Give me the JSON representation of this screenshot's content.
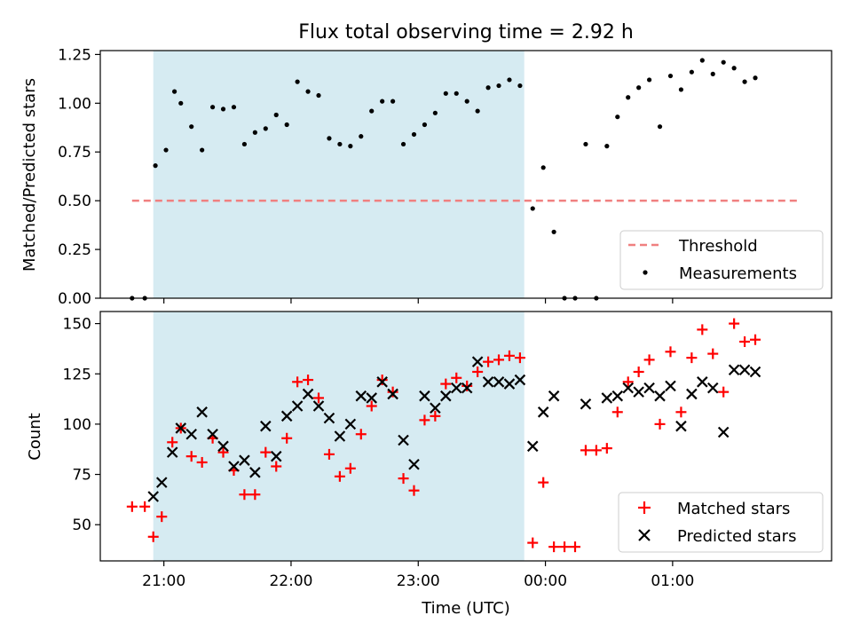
{
  "chart_data": [
    {
      "type": "scatter",
      "title": "Flux total observing time = 2.92 h",
      "xlabel": "",
      "ylabel": "Matched/Predicted stars",
      "ylim": [
        0,
        1.27
      ],
      "yticks": [
        "0.00",
        "0.25",
        "0.50",
        "0.75",
        "1.00",
        "1.25"
      ],
      "ytick_values": [
        0,
        0.25,
        0.5,
        0.75,
        1.0,
        1.25
      ],
      "xlim": [
        "20:30",
        "02:15"
      ],
      "shaded_span": [
        "20:55",
        "23:50"
      ],
      "shaded_color": "#add8e6",
      "legend_position": "lower-right",
      "threshold": {
        "name": "Threshold",
        "value": 0.5,
        "x": [
          "20:45",
          "02:00"
        ],
        "color": "#f08080"
      },
      "series": [
        {
          "name": "Measurements",
          "color": "#000000",
          "points": [
            [
              "20:45",
              0.0
            ],
            [
              "20:51",
              0.0
            ],
            [
              "20:56",
              0.68
            ],
            [
              "21:01",
              0.76
            ],
            [
              "21:05",
              1.06
            ],
            [
              "21:08",
              1.0
            ],
            [
              "21:13",
              0.88
            ],
            [
              "21:18",
              0.76
            ],
            [
              "21:23",
              0.98
            ],
            [
              "21:28",
              0.97
            ],
            [
              "21:33",
              0.98
            ],
            [
              "21:38",
              0.79
            ],
            [
              "21:43",
              0.85
            ],
            [
              "21:48",
              0.87
            ],
            [
              "21:53",
              0.94
            ],
            [
              "21:58",
              0.89
            ],
            [
              "22:03",
              1.11
            ],
            [
              "22:08",
              1.06
            ],
            [
              "22:13",
              1.04
            ],
            [
              "22:18",
              0.82
            ],
            [
              "22:23",
              0.79
            ],
            [
              "22:28",
              0.78
            ],
            [
              "22:33",
              0.83
            ],
            [
              "22:38",
              0.96
            ],
            [
              "22:43",
              1.01
            ],
            [
              "22:48",
              1.01
            ],
            [
              "22:53",
              0.79
            ],
            [
              "22:58",
              0.84
            ],
            [
              "23:03",
              0.89
            ],
            [
              "23:08",
              0.95
            ],
            [
              "23:13",
              1.05
            ],
            [
              "23:18",
              1.05
            ],
            [
              "23:23",
              1.01
            ],
            [
              "23:28",
              0.96
            ],
            [
              "23:33",
              1.08
            ],
            [
              "23:38",
              1.09
            ],
            [
              "23:43",
              1.12
            ],
            [
              "23:48",
              1.09
            ],
            [
              "23:54",
              0.46
            ],
            [
              "23:59",
              0.67
            ],
            [
              "00:04",
              0.34
            ],
            [
              "00:09",
              0.0
            ],
            [
              "00:14",
              0.0
            ],
            [
              "00:19",
              0.79
            ],
            [
              "00:24",
              0.0
            ],
            [
              "00:29",
              0.78
            ],
            [
              "00:34",
              0.93
            ],
            [
              "00:39",
              1.03
            ],
            [
              "00:44",
              1.08
            ],
            [
              "00:49",
              1.12
            ],
            [
              "00:54",
              0.88
            ],
            [
              "00:59",
              1.14
            ],
            [
              "01:04",
              1.07
            ],
            [
              "01:09",
              1.16
            ],
            [
              "01:14",
              1.22
            ],
            [
              "01:19",
              1.15
            ],
            [
              "01:24",
              1.21
            ],
            [
              "01:29",
              1.18
            ],
            [
              "01:34",
              1.11
            ],
            [
              "01:39",
              1.13
            ]
          ]
        }
      ]
    },
    {
      "type": "scatter",
      "title": "",
      "xlabel": "Time (UTC)",
      "ylabel": "Count",
      "ylim": [
        32,
        156
      ],
      "yticks": [
        "50",
        "75",
        "100",
        "125",
        "150"
      ],
      "ytick_values": [
        50,
        75,
        100,
        125,
        150
      ],
      "xlim": [
        "20:30",
        "02:15"
      ],
      "xticks": [
        "21:00",
        "22:00",
        "23:00",
        "00:00",
        "01:00"
      ],
      "xtick_hours": [
        21,
        22,
        23,
        24,
        25
      ],
      "shaded_span": [
        "20:55",
        "23:50"
      ],
      "shaded_color": "#add8e6",
      "legend_position": "lower-right",
      "series": [
        {
          "name": "Matched stars",
          "marker": "plus",
          "color": "#ff0000",
          "points": [
            [
              "20:45",
              59
            ],
            [
              "20:51",
              59
            ],
            [
              "20:55",
              44
            ],
            [
              "20:59",
              54
            ],
            [
              "21:04",
              91
            ],
            [
              "21:08",
              98
            ],
            [
              "21:13",
              84
            ],
            [
              "21:18",
              81
            ],
            [
              "21:23",
              93
            ],
            [
              "21:28",
              86
            ],
            [
              "21:33",
              77
            ],
            [
              "21:38",
              65
            ],
            [
              "21:43",
              65
            ],
            [
              "21:48",
              86
            ],
            [
              "21:53",
              79
            ],
            [
              "21:58",
              93
            ],
            [
              "22:03",
              121
            ],
            [
              "22:08",
              122
            ],
            [
              "22:13",
              113
            ],
            [
              "22:18",
              85
            ],
            [
              "22:23",
              74
            ],
            [
              "22:28",
              78
            ],
            [
              "22:33",
              95
            ],
            [
              "22:38",
              109
            ],
            [
              "22:43",
              122
            ],
            [
              "22:48",
              116
            ],
            [
              "22:53",
              73
            ],
            [
              "22:58",
              67
            ],
            [
              "23:03",
              102
            ],
            [
              "23:08",
              104
            ],
            [
              "23:13",
              120
            ],
            [
              "23:18",
              123
            ],
            [
              "23:23",
              119
            ],
            [
              "23:28",
              126
            ],
            [
              "23:33",
              131
            ],
            [
              "23:38",
              132
            ],
            [
              "23:43",
              134
            ],
            [
              "23:48",
              133
            ],
            [
              "23:54",
              41
            ],
            [
              "23:59",
              71
            ],
            [
              "00:04",
              39
            ],
            [
              "00:09",
              39
            ],
            [
              "00:14",
              39
            ],
            [
              "00:19",
              87
            ],
            [
              "00:24",
              87
            ],
            [
              "00:29",
              88
            ],
            [
              "00:34",
              106
            ],
            [
              "00:39",
              121
            ],
            [
              "00:44",
              126
            ],
            [
              "00:49",
              132
            ],
            [
              "00:54",
              100
            ],
            [
              "00:59",
              136
            ],
            [
              "01:04",
              106
            ],
            [
              "01:09",
              133
            ],
            [
              "01:14",
              147
            ],
            [
              "01:19",
              135
            ],
            [
              "01:24",
              116
            ],
            [
              "01:29",
              150
            ],
            [
              "01:34",
              141
            ],
            [
              "01:39",
              142
            ]
          ]
        },
        {
          "name": "Predicted stars",
          "marker": "x",
          "color": "#000000",
          "points": [
            [
              "20:55",
              64
            ],
            [
              "20:59",
              71
            ],
            [
              "21:04",
              86
            ],
            [
              "21:08",
              98
            ],
            [
              "21:13",
              95
            ],
            [
              "21:18",
              106
            ],
            [
              "21:23",
              95
            ],
            [
              "21:28",
              89
            ],
            [
              "21:33",
              79
            ],
            [
              "21:38",
              82
            ],
            [
              "21:43",
              76
            ],
            [
              "21:48",
              99
            ],
            [
              "21:53",
              84
            ],
            [
              "21:58",
              104
            ],
            [
              "22:03",
              109
            ],
            [
              "22:08",
              115
            ],
            [
              "22:13",
              109
            ],
            [
              "22:18",
              103
            ],
            [
              "22:23",
              94
            ],
            [
              "22:28",
              100
            ],
            [
              "22:33",
              114
            ],
            [
              "22:38",
              113
            ],
            [
              "22:43",
              121
            ],
            [
              "22:48",
              115
            ],
            [
              "22:53",
              92
            ],
            [
              "22:58",
              80
            ],
            [
              "23:03",
              114
            ],
            [
              "23:08",
              108
            ],
            [
              "23:13",
              114
            ],
            [
              "23:18",
              118
            ],
            [
              "23:23",
              118
            ],
            [
              "23:28",
              131
            ],
            [
              "23:33",
              121
            ],
            [
              "23:38",
              121
            ],
            [
              "23:43",
              120
            ],
            [
              "23:48",
              122
            ],
            [
              "23:54",
              89
            ],
            [
              "23:59",
              106
            ],
            [
              "00:04",
              114
            ],
            [
              "00:19",
              110
            ],
            [
              "00:29",
              113
            ],
            [
              "00:34",
              114
            ],
            [
              "00:39",
              118
            ],
            [
              "00:44",
              116
            ],
            [
              "00:49",
              118
            ],
            [
              "00:54",
              114
            ],
            [
              "00:59",
              119
            ],
            [
              "01:04",
              99
            ],
            [
              "01:09",
              115
            ],
            [
              "01:14",
              121
            ],
            [
              "01:19",
              118
            ],
            [
              "01:24",
              96
            ],
            [
              "01:29",
              127
            ],
            [
              "01:34",
              127
            ],
            [
              "01:39",
              126
            ]
          ]
        }
      ]
    }
  ]
}
